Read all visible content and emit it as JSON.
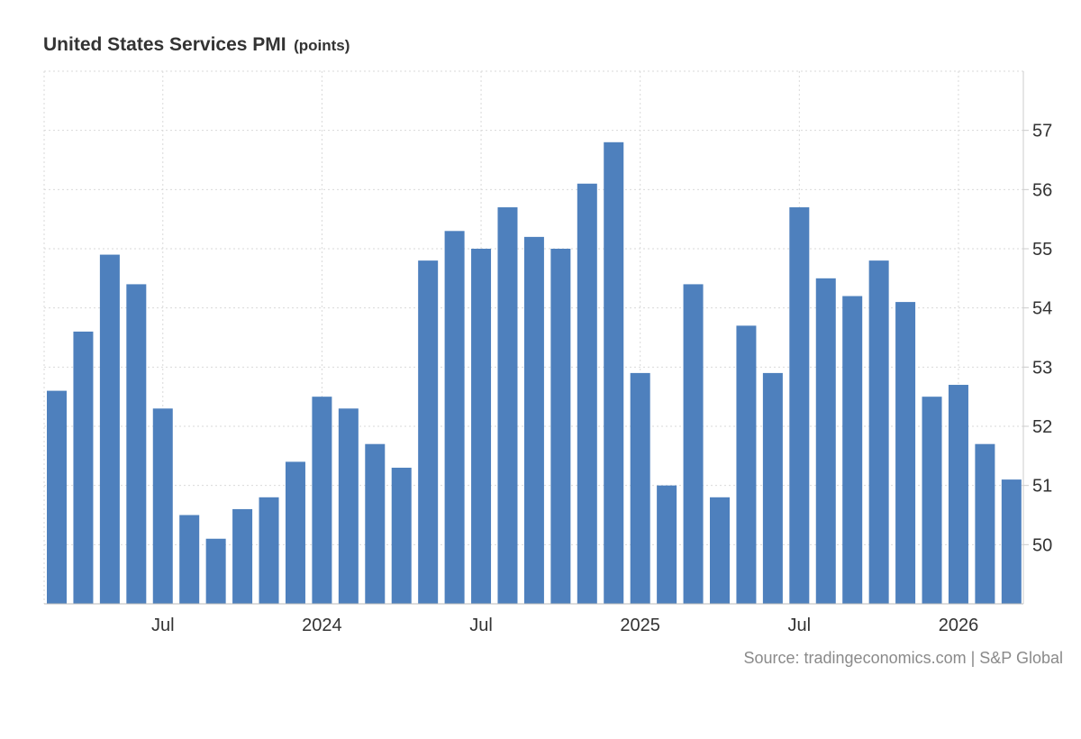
{
  "chart_data": {
    "type": "bar",
    "title": "United States Services PMI",
    "units": "(points)",
    "source": "Source: tradingeconomics.com | S&P Global",
    "color": "#4e80bd",
    "categories": [
      "2023-03",
      "2023-04",
      "2023-05",
      "2023-06",
      "2023-07",
      "2023-08",
      "2023-09",
      "2023-10",
      "2023-11",
      "2023-12",
      "2024-01",
      "2024-02",
      "2024-03",
      "2024-04",
      "2024-05",
      "2024-06",
      "2024-07",
      "2024-08",
      "2024-09",
      "2024-10",
      "2024-11",
      "2024-12",
      "2025-01",
      "2025-02",
      "2025-03",
      "2025-04",
      "2025-05",
      "2025-06",
      "2025-07",
      "2025-08",
      "2025-09",
      "2025-10",
      "2025-11",
      "2025-12",
      "2026-01",
      "2026-02",
      "2026-03"
    ],
    "values": [
      52.6,
      53.6,
      54.9,
      54.4,
      52.3,
      50.5,
      50.1,
      50.6,
      50.8,
      51.4,
      52.5,
      52.3,
      51.7,
      51.3,
      54.8,
      55.3,
      55.0,
      55.7,
      55.2,
      55.0,
      56.1,
      56.8,
      52.9,
      51.0,
      54.4,
      50.8,
      53.7,
      52.9,
      55.7,
      54.5,
      54.2,
      54.8,
      54.1,
      52.5,
      52.7,
      51.7,
      51.1
    ],
    "ylim": [
      49.0,
      58.0
    ],
    "yticks": [
      50,
      51,
      52,
      53,
      54,
      55,
      56,
      57
    ],
    "xticks": [
      {
        "label": "Jul",
        "index": 4
      },
      {
        "label": "2024",
        "index": 10
      },
      {
        "label": "Jul",
        "index": 16
      },
      {
        "label": "2025",
        "index": 22
      },
      {
        "label": "Jul",
        "index": 28
      },
      {
        "label": "2026",
        "index": 34
      }
    ],
    "grid": true,
    "legend": "none"
  }
}
